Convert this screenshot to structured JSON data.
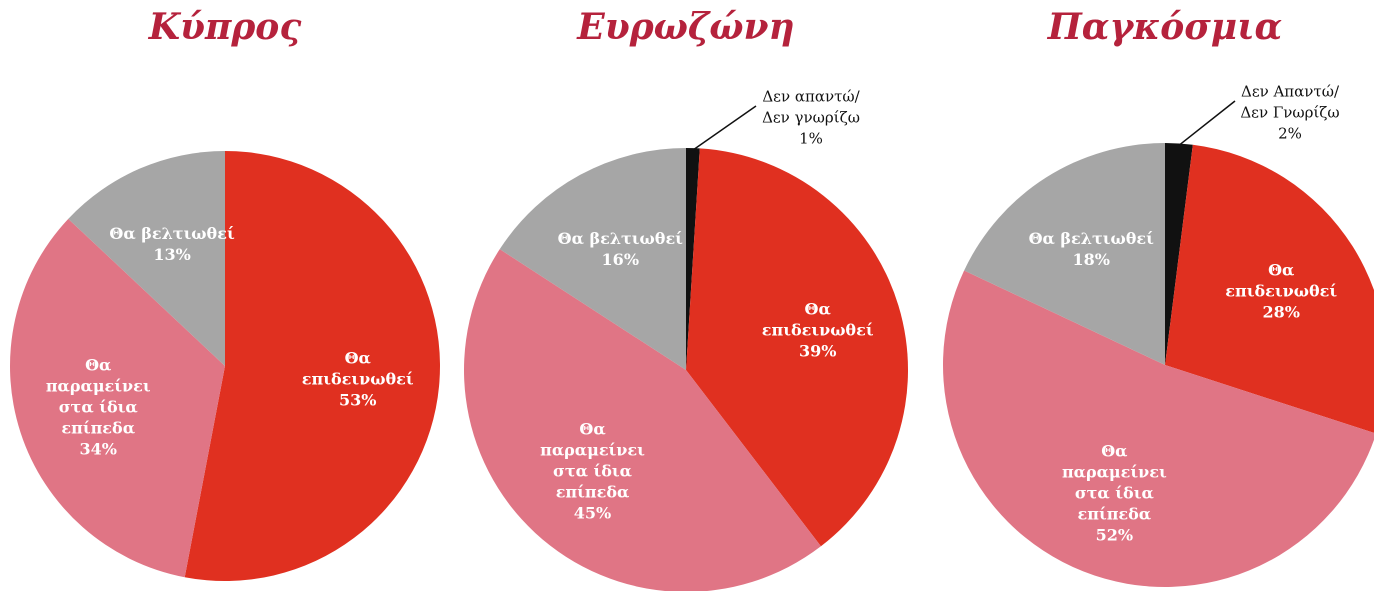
{
  "chart_data": [
    {
      "type": "pie",
      "title": "Κύπρος",
      "categories": [
        "Θα επιδεινωθεί",
        "Θα παραμείνει στα ίδια επίπεδα",
        "Θα βελτιωθεί"
      ],
      "values": [
        53,
        34,
        13
      ],
      "value_labels": [
        "53%",
        "34%",
        "13%"
      ],
      "colors": [
        "#e03020",
        "#e07585",
        "#a6a6a6"
      ]
    },
    {
      "type": "pie",
      "title": "Ευρωζώνη",
      "categories": [
        "Δεν απαντώ/Δεν γνωρίζω",
        "Θα επιδεινωθεί",
        "Θα παραμείνει στα ίδια επίπεδα",
        "Θα βελτιωθεί"
      ],
      "values": [
        1,
        39,
        45,
        16
      ],
      "value_labels": [
        "1%",
        "39%",
        "45%",
        "16%"
      ],
      "colors": [
        "#111111",
        "#e03020",
        "#e07585",
        "#a6a6a6"
      ]
    },
    {
      "type": "pie",
      "title": "Παγκόσμια",
      "categories": [
        "Δεν Απαντώ/Δεν Γνωρίζω",
        "Θα επιδεινωθεί",
        "Θα παραμείνει στα ίδια επίπεδα",
        "Θα βελτιωθεί"
      ],
      "values": [
        2,
        28,
        52,
        18
      ],
      "value_labels": [
        "2%",
        "28%",
        "52%",
        "18%"
      ],
      "colors": [
        "#111111",
        "#e03020",
        "#e07585",
        "#a6a6a6"
      ]
    }
  ]
}
